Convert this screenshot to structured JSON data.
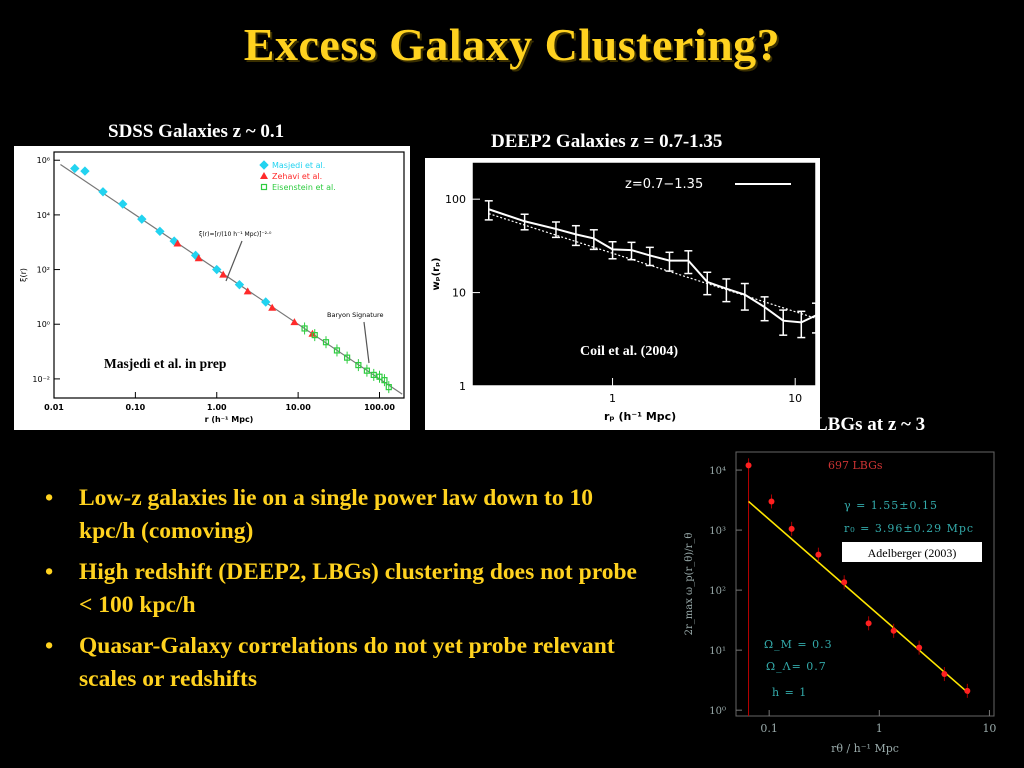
{
  "title": "Excess Galaxy Clustering?",
  "bullets": [
    "Low-z galaxies lie on a single power law down to 10 kpc/h (comoving)",
    "High redshift (DEEP2, LBGs) clustering does not probe < 100 kpc/h",
    "Quasar-Galaxy correlations do not yet probe relevant scales or redshifts"
  ],
  "bullet_glyph": "•",
  "colors": {
    "accent": "#ffd21f",
    "background": "#000000",
    "text": "#ffffff"
  },
  "chart_data": [
    {
      "id": "sdss",
      "type": "scatter",
      "caption": "SDSS Galaxies z ~ 0.1",
      "xlabel": "r (h⁻¹ Mpc)",
      "ylabel": "ξ(r)",
      "xscale": "log",
      "yscale": "log",
      "xlim": [
        0.01,
        200
      ],
      "ylim": [
        0.002,
        2000000
      ],
      "xticks": [
        0.01,
        0.1,
        1,
        10,
        100
      ],
      "xtick_labels": [
        "0.01",
        "0.10",
        "1.00",
        "10.00",
        "100.00"
      ],
      "yticks": [
        0.01,
        1,
        100,
        10000,
        1000000
      ],
      "ytick_labels": [
        "10⁻²",
        "10⁰",
        "10²",
        "10⁴",
        "10⁶"
      ],
      "legend": [
        "Masjedi et al.",
        "Zehavi et al.",
        "Eisenstein et al."
      ],
      "legend_position": "top-right",
      "fit_label": "ξ(r)=[r/(10 h⁻¹ Mpc)]⁻²·⁰",
      "annotation": "Baryon Signature",
      "inset_note": "Masjedi et al. in prep",
      "power_law": {
        "r0": 10,
        "gamma": 2.0
      },
      "series": [
        {
          "name": "Masjedi et al.",
          "color": "#22d3f0",
          "marker": "diamond",
          "x": [
            0.018,
            0.024,
            0.04,
            0.07,
            0.12,
            0.2,
            0.3,
            0.55,
            1.0,
            1.9,
            4.0
          ],
          "y": [
            500000,
            400000,
            70000,
            25000,
            7000,
            2500,
            1100,
            330,
            100,
            28,
            6.5
          ]
        },
        {
          "name": "Zehavi et al.",
          "color": "#ff2a2a",
          "marker": "triangle",
          "x": [
            0.33,
            0.6,
            1.2,
            2.4,
            4.8,
            9,
            15
          ],
          "y": [
            900,
            260,
            65,
            16,
            4,
            1.2,
            0.45
          ]
        },
        {
          "name": "Eisenstein et al.",
          "color": "#2ecc40",
          "marker": "square",
          "x": [
            12,
            16,
            22,
            30,
            40,
            55,
            70,
            85,
            100,
            115,
            130
          ],
          "y": [
            0.7,
            0.4,
            0.22,
            0.11,
            0.06,
            0.032,
            0.02,
            0.014,
            0.012,
            0.009,
            0.005
          ]
        }
      ]
    },
    {
      "id": "deep2",
      "type": "line",
      "caption": "DEEP2 Galaxies z = 0.7-1.35",
      "xlabel": "rₚ (h⁻¹ Mpc)",
      "ylabel": "wₚ(rₚ)",
      "xscale": "log",
      "yscale": "log",
      "xlim": [
        0.17,
        13
      ],
      "ylim": [
        1,
        250
      ],
      "xticks": [
        1,
        10
      ],
      "xtick_labels": [
        "1",
        "10"
      ],
      "yticks": [
        1,
        10,
        100
      ],
      "ytick_labels": [
        "1",
        "10",
        "100"
      ],
      "legend": [
        "z=0.7−1.35"
      ],
      "legend_position": "top-right",
      "inset_note": "Coil et al. (2004)",
      "series": [
        {
          "name": "z=0.7−1.35",
          "color": "#ffffff",
          "x": [
            0.21,
            0.33,
            0.49,
            0.63,
            0.79,
            1.0,
            1.27,
            1.6,
            2.05,
            2.6,
            3.3,
            4.2,
            5.3,
            6.8,
            8.6,
            10.8,
            13.0
          ],
          "y": [
            78,
            58,
            48,
            42,
            38,
            29,
            28.5,
            25,
            22,
            22,
            13,
            11,
            9.5,
            7,
            5,
            4.8,
            5.7
          ],
          "err": [
            18,
            11,
            9,
            10,
            9,
            6,
            6,
            5.5,
            5,
            6,
            3.5,
            3,
            3,
            2,
            1.5,
            1.5,
            2
          ]
        }
      ],
      "fit": {
        "x": [
          0.21,
          13.0
        ],
        "y": [
          70,
          5.3
        ]
      }
    },
    {
      "id": "lbg",
      "type": "scatter",
      "caption": "LBGs at z ~ 3",
      "xlabel": "rθ / h⁻¹ Mpc",
      "ylabel": "2r_max ω_p(r_θ)/r_θ",
      "xscale": "log",
      "yscale": "log",
      "xlim": [
        0.05,
        11
      ],
      "ylim": [
        0.8,
        20000
      ],
      "xticks": [
        0.1,
        1,
        10
      ],
      "xtick_labels": [
        "0.1",
        "1",
        "10"
      ],
      "yticks": [
        1,
        10,
        100,
        1000,
        10000
      ],
      "ytick_labels": [
        "10⁰",
        "10¹",
        "10²",
        "10³",
        "10⁴"
      ],
      "legend": [
        "697 LBGs"
      ],
      "legend_position": "top-right",
      "params": [
        "γ = 1.55±0.15",
        "r₀ = 3.96±0.29 Mpc"
      ],
      "cosmo": [
        "Ω_M = 0.3",
        "Ω_Λ= 0.7",
        "h = 1"
      ],
      "inset_note": "Adelberger (2003)",
      "series": [
        {
          "name": "697 LBGs",
          "color": "#ff2020",
          "x": [
            0.065,
            0.105,
            0.16,
            0.28,
            0.48,
            0.8,
            1.35,
            2.3,
            3.9,
            6.3
          ],
          "y": [
            12000,
            3000,
            1050,
            390,
            135,
            28,
            21,
            11,
            4,
            2.1
          ]
        }
      ],
      "fit": {
        "x": [
          0.065,
          6.5
        ],
        "y": [
          3000,
          1.9
        ]
      }
    }
  ]
}
